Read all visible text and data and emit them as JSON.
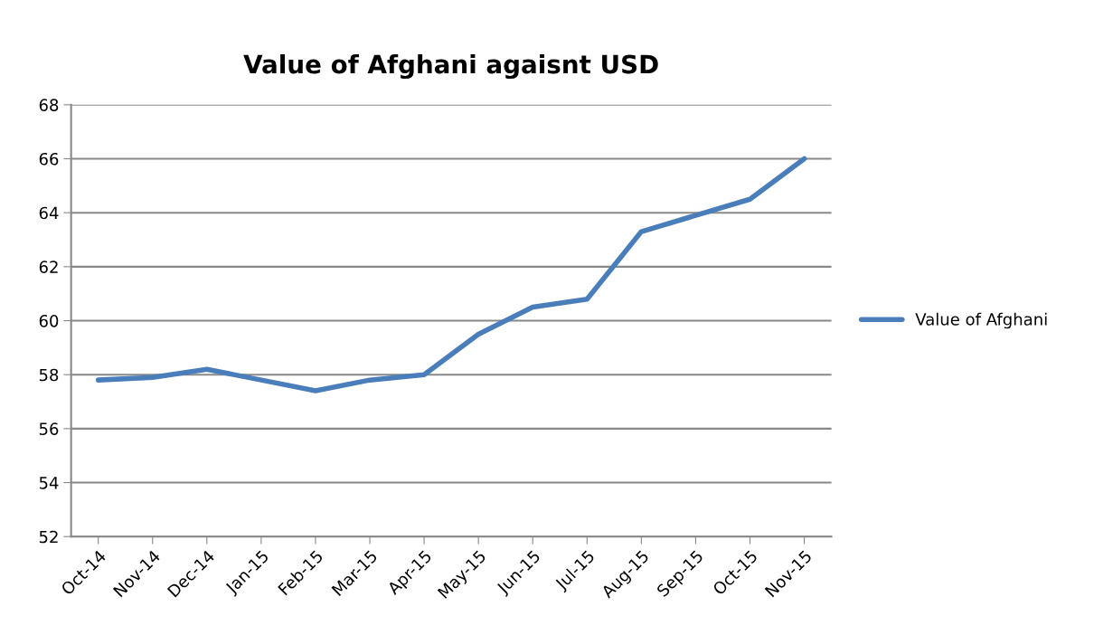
{
  "chart_data": {
    "type": "line",
    "title": "Value of Afghani agaisnt USD",
    "categories": [
      "Oct-14",
      "Nov-14",
      "Dec-14",
      "Jan-15",
      "Feb-15",
      "Mar-15",
      "Apr-15",
      "May-15",
      "Jun-15",
      "Jul-15",
      "Aug-15",
      "Sep-15",
      "Oct-15",
      "Nov-15"
    ],
    "series": [
      {
        "name": "Value of Afghani",
        "color": "#4a7ebb",
        "values": [
          57.8,
          57.9,
          58.2,
          57.8,
          57.4,
          57.8,
          58.0,
          59.5,
          60.5,
          60.8,
          63.3,
          63.9,
          64.5,
          66.0
        ]
      }
    ],
    "ylim": [
      52,
      68
    ],
    "yticks": [
      52,
      54,
      56,
      58,
      60,
      62,
      64,
      66,
      68
    ],
    "grid": "y",
    "legend": "right",
    "marker": "none",
    "line_style": "solid"
  }
}
